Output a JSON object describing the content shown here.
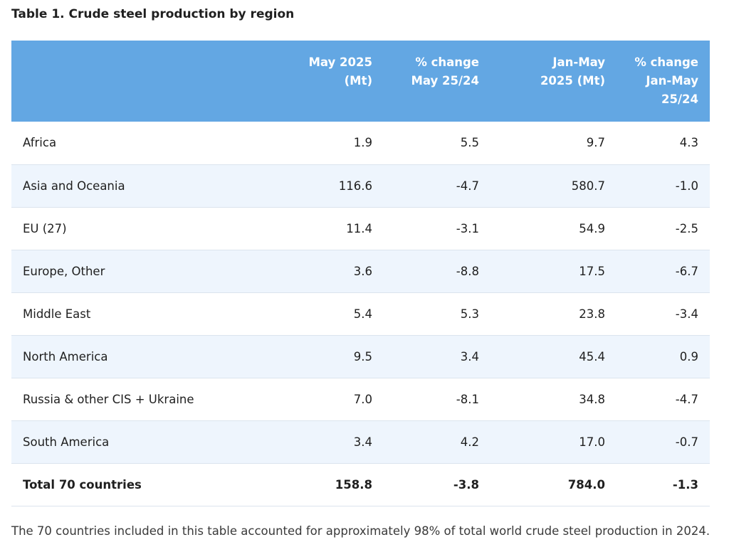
{
  "title": "Table 1. Crude steel production by region",
  "columns": [
    "",
    [
      "May 2025",
      "(Mt)"
    ],
    [
      "% change",
      "May 25/24"
    ],
    [
      "Jan-May",
      "2025 (Mt)"
    ],
    [
      "% change",
      "Jan-May",
      "25/24"
    ]
  ],
  "rows": [
    {
      "region": "Africa",
      "may": "1.9",
      "may_change": "5.5",
      "ytd": "9.7",
      "ytd_change": "4.3"
    },
    {
      "region": "Asia and Oceania",
      "may": "116.6",
      "may_change": "-4.7",
      "ytd": "580.7",
      "ytd_change": "-1.0"
    },
    {
      "region": "EU (27)",
      "may": "11.4",
      "may_change": "-3.1",
      "ytd": "54.9",
      "ytd_change": "-2.5"
    },
    {
      "region": "Europe, Other",
      "may": "3.6",
      "may_change": "-8.8",
      "ytd": "17.5",
      "ytd_change": "-6.7"
    },
    {
      "region": "Middle East",
      "may": "5.4",
      "may_change": "5.3",
      "ytd": "23.8",
      "ytd_change": "-3.4"
    },
    {
      "region": "North America",
      "may": "9.5",
      "may_change": "3.4",
      "ytd": "45.4",
      "ytd_change": "0.9"
    },
    {
      "region": "Russia & other CIS + Ukraine",
      "may": "7.0",
      "may_change": "-8.1",
      "ytd": "34.8",
      "ytd_change": "-4.7"
    },
    {
      "region": "South America",
      "may": "3.4",
      "may_change": "4.2",
      "ytd": "17.0",
      "ytd_change": "-0.7"
    }
  ],
  "total": {
    "region": "Total 70 countries",
    "may": "158.8",
    "may_change": "-3.8",
    "ytd": "784.0",
    "ytd_change": "-1.3"
  },
  "footnote": "The 70 countries included in this table accounted for approximately 98% of total world crude steel production in 2024."
}
